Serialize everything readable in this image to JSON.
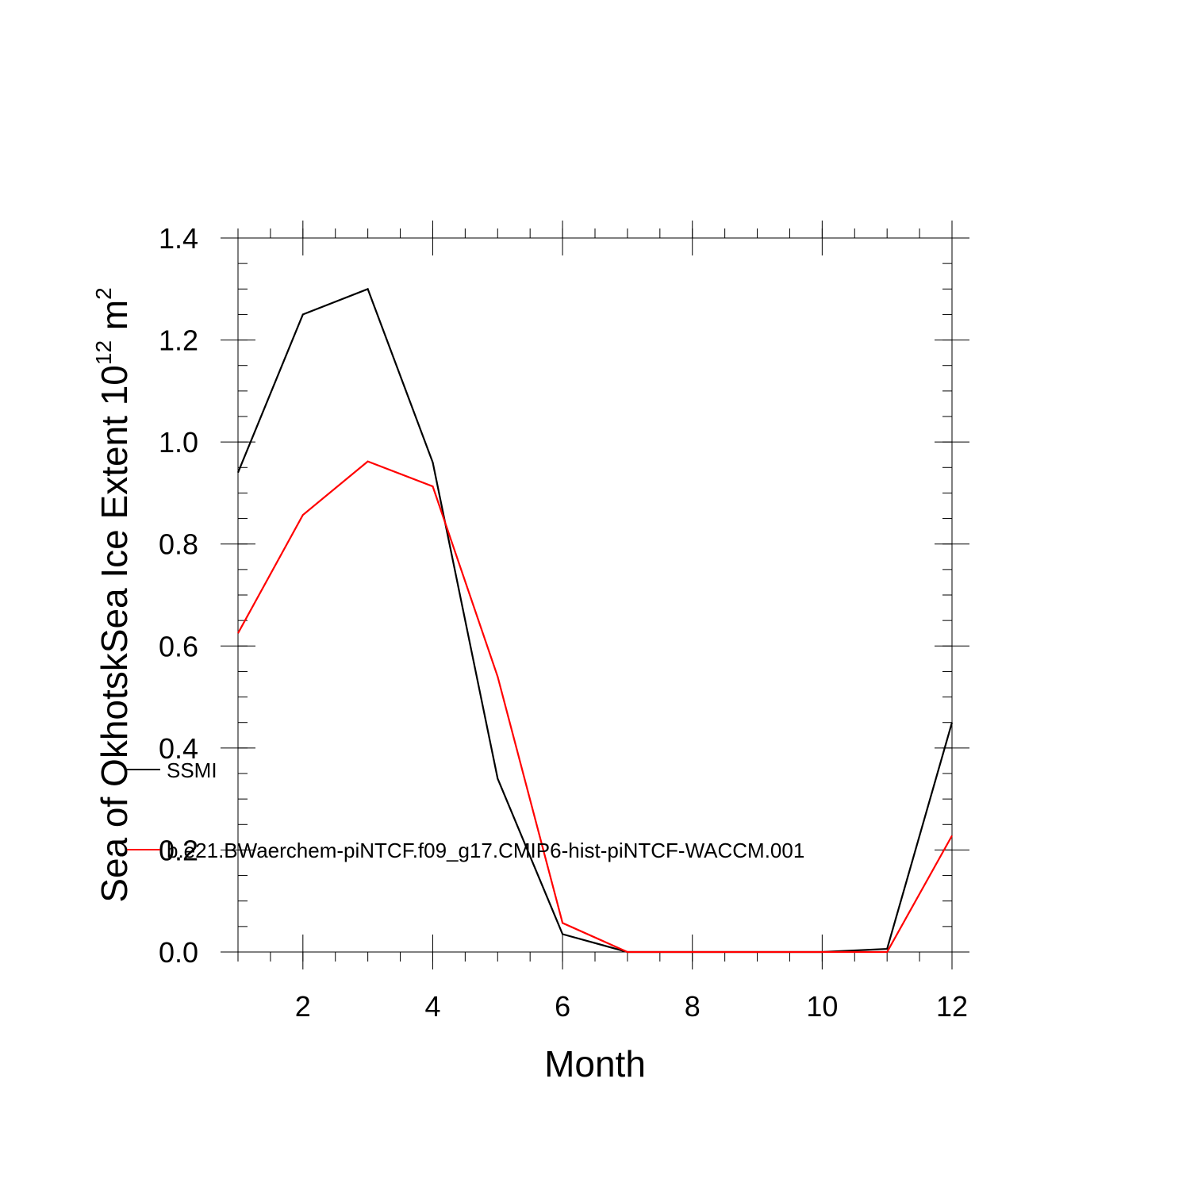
{
  "chart_data": {
    "type": "line",
    "xlabel": "Month",
    "ylabel_main": "Sea of OkhotskSea Ice Extent 10",
    "ylabel_exponent": "12",
    "ylabel_unit": " m",
    "ylabel_unit_exponent": "2",
    "xlim": [
      1,
      12
    ],
    "ylim": [
      0,
      1.4
    ],
    "xticks": [
      2,
      4,
      6,
      8,
      10,
      12
    ],
    "yticks": [
      0.0,
      0.2,
      0.4,
      0.6,
      0.8,
      1.0,
      1.2,
      1.4
    ],
    "x": [
      1,
      2,
      3,
      4,
      5,
      6,
      7,
      8,
      9,
      10,
      11,
      12
    ],
    "series": [
      {
        "name": "SSMI",
        "color": "#000000",
        "values": [
          0.94,
          1.25,
          1.3,
          0.96,
          0.34,
          0.035,
          0.0,
          0.0,
          0.0,
          0.0,
          0.006,
          0.45
        ]
      },
      {
        "name": "b.e21.BWaerchem-piNTCF.f09_g17.CMIP6-hist-piNTCF-WACCM.001",
        "color": "#ff0000",
        "values": [
          0.625,
          0.857,
          0.962,
          0.913,
          0.54,
          0.057,
          0.0,
          0.0,
          0.0,
          0.0,
          0.0,
          0.228
        ]
      }
    ],
    "legend": "inside-lower-left",
    "grid": false
  }
}
